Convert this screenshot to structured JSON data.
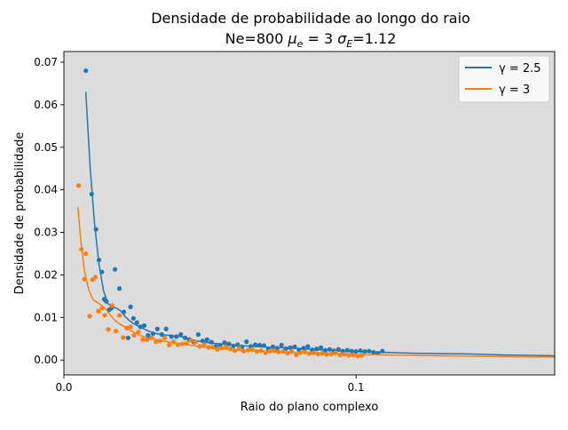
{
  "chart_data": {
    "type": "scatter",
    "title_line1": "Densidade de probabilidade ao longo do raio",
    "title_line2_prefix": "Ne=800 ",
    "title_mu_symbol": "μ",
    "title_mu_sub": "e",
    "title_mu_value": " = 3 ",
    "title_sigma_symbol": "σ",
    "title_sigma_sub": "E",
    "title_sigma_value": "=1.12",
    "xlabel": "Raio do plano complexo",
    "ylabel": "Densidade de probabilidade",
    "xlim": [
      0.0,
      0.168
    ],
    "ylim": [
      -0.0035,
      0.0725
    ],
    "xticks": [
      0.0,
      0.1
    ],
    "xtick_labels": [
      "0.0",
      "0.1"
    ],
    "yticks": [
      0.0,
      0.01,
      0.02,
      0.03,
      0.04,
      0.05,
      0.06,
      0.07
    ],
    "ytick_labels": [
      "0.00",
      "0.01",
      "0.02",
      "0.03",
      "0.04",
      "0.05",
      "0.06",
      "0.07"
    ],
    "plot_background": "#dcdcdc",
    "grid": false,
    "legend_position": "top-right",
    "series": [
      {
        "name": "γ = 2.5",
        "color": "#1f77b4",
        "points": [
          [
            0.0075,
            0.068
          ],
          [
            0.0095,
            0.039
          ],
          [
            0.011,
            0.0307
          ],
          [
            0.012,
            0.0235
          ],
          [
            0.013,
            0.0207
          ],
          [
            0.0138,
            0.0143
          ],
          [
            0.0145,
            0.0138
          ],
          [
            0.0155,
            0.0118
          ],
          [
            0.0163,
            0.0122
          ],
          [
            0.0175,
            0.0213
          ],
          [
            0.019,
            0.0168
          ],
          [
            0.0205,
            0.0113
          ],
          [
            0.022,
            0.0052
          ],
          [
            0.0228,
            0.0125
          ],
          [
            0.0238,
            0.0098
          ],
          [
            0.025,
            0.0088
          ],
          [
            0.0262,
            0.0078
          ],
          [
            0.0275,
            0.0081
          ],
          [
            0.0288,
            0.0058
          ],
          [
            0.0305,
            0.0062
          ],
          [
            0.032,
            0.0073
          ],
          [
            0.0335,
            0.006
          ],
          [
            0.035,
            0.0073
          ],
          [
            0.0368,
            0.0055
          ],
          [
            0.0385,
            0.0055
          ],
          [
            0.04,
            0.006
          ],
          [
            0.0415,
            0.0052
          ],
          [
            0.043,
            0.0048
          ],
          [
            0.0445,
            0.0042
          ],
          [
            0.046,
            0.006
          ],
          [
            0.0475,
            0.0045
          ],
          [
            0.049,
            0.0048
          ],
          [
            0.0505,
            0.0042
          ],
          [
            0.052,
            0.0032
          ],
          [
            0.0535,
            0.0035
          ],
          [
            0.055,
            0.0041
          ],
          [
            0.0565,
            0.0038
          ],
          [
            0.058,
            0.0033
          ],
          [
            0.0595,
            0.0036
          ],
          [
            0.061,
            0.0031
          ],
          [
            0.0625,
            0.0043
          ],
          [
            0.064,
            0.0032
          ],
          [
            0.0655,
            0.0036
          ],
          [
            0.067,
            0.0035
          ],
          [
            0.0685,
            0.0034
          ],
          [
            0.07,
            0.0026
          ],
          [
            0.0715,
            0.0031
          ],
          [
            0.073,
            0.0028
          ],
          [
            0.0745,
            0.0035
          ],
          [
            0.076,
            0.0027
          ],
          [
            0.0775,
            0.0029
          ],
          [
            0.079,
            0.0031
          ],
          [
            0.0805,
            0.0024
          ],
          [
            0.082,
            0.0028
          ],
          [
            0.0835,
            0.0032
          ],
          [
            0.085,
            0.0024
          ],
          [
            0.0865,
            0.0026
          ],
          [
            0.088,
            0.0029
          ],
          [
            0.0895,
            0.0023
          ],
          [
            0.091,
            0.0025
          ],
          [
            0.0925,
            0.0022
          ],
          [
            0.094,
            0.0025
          ],
          [
            0.0955,
            0.0021
          ],
          [
            0.097,
            0.0023
          ],
          [
            0.0985,
            0.0021
          ],
          [
            0.1,
            0.002
          ],
          [
            0.1015,
            0.0022
          ],
          [
            0.103,
            0.002
          ],
          [
            0.1045,
            0.0021
          ],
          [
            0.106,
            0.0018
          ],
          [
            0.1075,
            0.0016
          ],
          [
            0.109,
            0.0021
          ]
        ],
        "fit": [
          [
            0.0075,
            0.063
          ],
          [
            0.009,
            0.045
          ],
          [
            0.0105,
            0.032
          ],
          [
            0.012,
            0.0225
          ],
          [
            0.0135,
            0.0165
          ],
          [
            0.015,
            0.0133
          ],
          [
            0.0165,
            0.0125
          ],
          [
            0.018,
            0.0122
          ],
          [
            0.0195,
            0.0115
          ],
          [
            0.021,
            0.0102
          ],
          [
            0.0225,
            0.0092
          ],
          [
            0.024,
            0.0085
          ],
          [
            0.026,
            0.0078
          ],
          [
            0.028,
            0.0071
          ],
          [
            0.03,
            0.0065
          ],
          [
            0.033,
            0.006
          ],
          [
            0.036,
            0.0058
          ],
          [
            0.04,
            0.0055
          ],
          [
            0.045,
            0.0046
          ],
          [
            0.05,
            0.004
          ],
          [
            0.055,
            0.0037
          ],
          [
            0.06,
            0.0034
          ],
          [
            0.065,
            0.0032
          ],
          [
            0.07,
            0.003
          ],
          [
            0.075,
            0.0029
          ],
          [
            0.08,
            0.0027
          ],
          [
            0.085,
            0.0025
          ],
          [
            0.09,
            0.0023
          ],
          [
            0.095,
            0.0021
          ],
          [
            0.1,
            0.002
          ],
          [
            0.11,
            0.0018
          ],
          [
            0.12,
            0.0016
          ],
          [
            0.13,
            0.0015
          ],
          [
            0.14,
            0.0014
          ],
          [
            0.15,
            0.0012
          ],
          [
            0.16,
            0.0011
          ],
          [
            0.168,
            0.001
          ]
        ]
      },
      {
        "name": "γ = 3",
        "color": "#ff7f0e",
        "points": [
          [
            0.005,
            0.041
          ],
          [
            0.006,
            0.026
          ],
          [
            0.007,
            0.019
          ],
          [
            0.0075,
            0.025
          ],
          [
            0.0088,
            0.0103
          ],
          [
            0.0098,
            0.0189
          ],
          [
            0.0108,
            0.0195
          ],
          [
            0.0118,
            0.0115
          ],
          [
            0.013,
            0.0122
          ],
          [
            0.014,
            0.0105
          ],
          [
            0.0152,
            0.0072
          ],
          [
            0.0165,
            0.0128
          ],
          [
            0.0178,
            0.0068
          ],
          [
            0.019,
            0.0105
          ],
          [
            0.0203,
            0.0053
          ],
          [
            0.0215,
            0.0075
          ],
          [
            0.0228,
            0.0078
          ],
          [
            0.024,
            0.0058
          ],
          [
            0.0255,
            0.0066
          ],
          [
            0.027,
            0.0048
          ],
          [
            0.0285,
            0.0048
          ],
          [
            0.03,
            0.0052
          ],
          [
            0.0315,
            0.0043
          ],
          [
            0.033,
            0.0045
          ],
          [
            0.0345,
            0.0052
          ],
          [
            0.036,
            0.0035
          ],
          [
            0.0375,
            0.0043
          ],
          [
            0.039,
            0.0036
          ],
          [
            0.0405,
            0.0038
          ],
          [
            0.042,
            0.0039
          ],
          [
            0.0435,
            0.0046
          ],
          [
            0.045,
            0.0042
          ],
          [
            0.0465,
            0.0032
          ],
          [
            0.048,
            0.0036
          ],
          [
            0.0495,
            0.003
          ],
          [
            0.051,
            0.003
          ],
          [
            0.0525,
            0.0025
          ],
          [
            0.054,
            0.0028
          ],
          [
            0.0555,
            0.0031
          ],
          [
            0.057,
            0.0026
          ],
          [
            0.0585,
            0.0022
          ],
          [
            0.06,
            0.0028
          ],
          [
            0.0615,
            0.0021
          ],
          [
            0.063,
            0.0023
          ],
          [
            0.0645,
            0.0025
          ],
          [
            0.066,
            0.002
          ],
          [
            0.0675,
            0.0022
          ],
          [
            0.069,
            0.0017
          ],
          [
            0.0705,
            0.0021
          ],
          [
            0.072,
            0.0022
          ],
          [
            0.0735,
            0.0019
          ],
          [
            0.075,
            0.002
          ],
          [
            0.0765,
            0.0016
          ],
          [
            0.078,
            0.002
          ],
          [
            0.0795,
            0.0012
          ],
          [
            0.081,
            0.0017
          ],
          [
            0.0825,
            0.0019
          ],
          [
            0.084,
            0.0015
          ],
          [
            0.0855,
            0.0017
          ],
          [
            0.087,
            0.0014
          ],
          [
            0.0885,
            0.0016
          ],
          [
            0.09,
            0.0013
          ],
          [
            0.0915,
            0.0014
          ],
          [
            0.093,
            0.0017
          ],
          [
            0.0945,
            0.0012
          ],
          [
            0.096,
            0.0014
          ],
          [
            0.0975,
            0.0011
          ],
          [
            0.099,
            0.0012
          ],
          [
            0.1005,
            0.0009
          ],
          [
            0.102,
            0.0011
          ]
        ],
        "fit": [
          [
            0.0048,
            0.036
          ],
          [
            0.0058,
            0.028
          ],
          [
            0.007,
            0.021
          ],
          [
            0.0085,
            0.0165
          ],
          [
            0.01,
            0.0142
          ],
          [
            0.0115,
            0.0135
          ],
          [
            0.013,
            0.0128
          ],
          [
            0.0145,
            0.0118
          ],
          [
            0.016,
            0.0105
          ],
          [
            0.0175,
            0.0093
          ],
          [
            0.019,
            0.0085
          ],
          [
            0.0205,
            0.0079
          ],
          [
            0.022,
            0.0072
          ],
          [
            0.024,
            0.0065
          ],
          [
            0.026,
            0.0058
          ],
          [
            0.028,
            0.0053
          ],
          [
            0.03,
            0.005
          ],
          [
            0.033,
            0.0046
          ],
          [
            0.036,
            0.0042
          ],
          [
            0.04,
            0.0038
          ],
          [
            0.045,
            0.0033
          ],
          [
            0.05,
            0.0029
          ],
          [
            0.055,
            0.0026
          ],
          [
            0.06,
            0.0023
          ],
          [
            0.065,
            0.0021
          ],
          [
            0.07,
            0.002
          ],
          [
            0.075,
            0.0018
          ],
          [
            0.08,
            0.0017
          ],
          [
            0.09,
            0.0015
          ],
          [
            0.1,
            0.0013
          ],
          [
            0.11,
            0.0012
          ],
          [
            0.12,
            0.0011
          ],
          [
            0.13,
            0.001
          ],
          [
            0.14,
            0.0009
          ],
          [
            0.15,
            0.0008
          ],
          [
            0.16,
            0.0007
          ],
          [
            0.168,
            0.0007
          ]
        ]
      }
    ]
  }
}
